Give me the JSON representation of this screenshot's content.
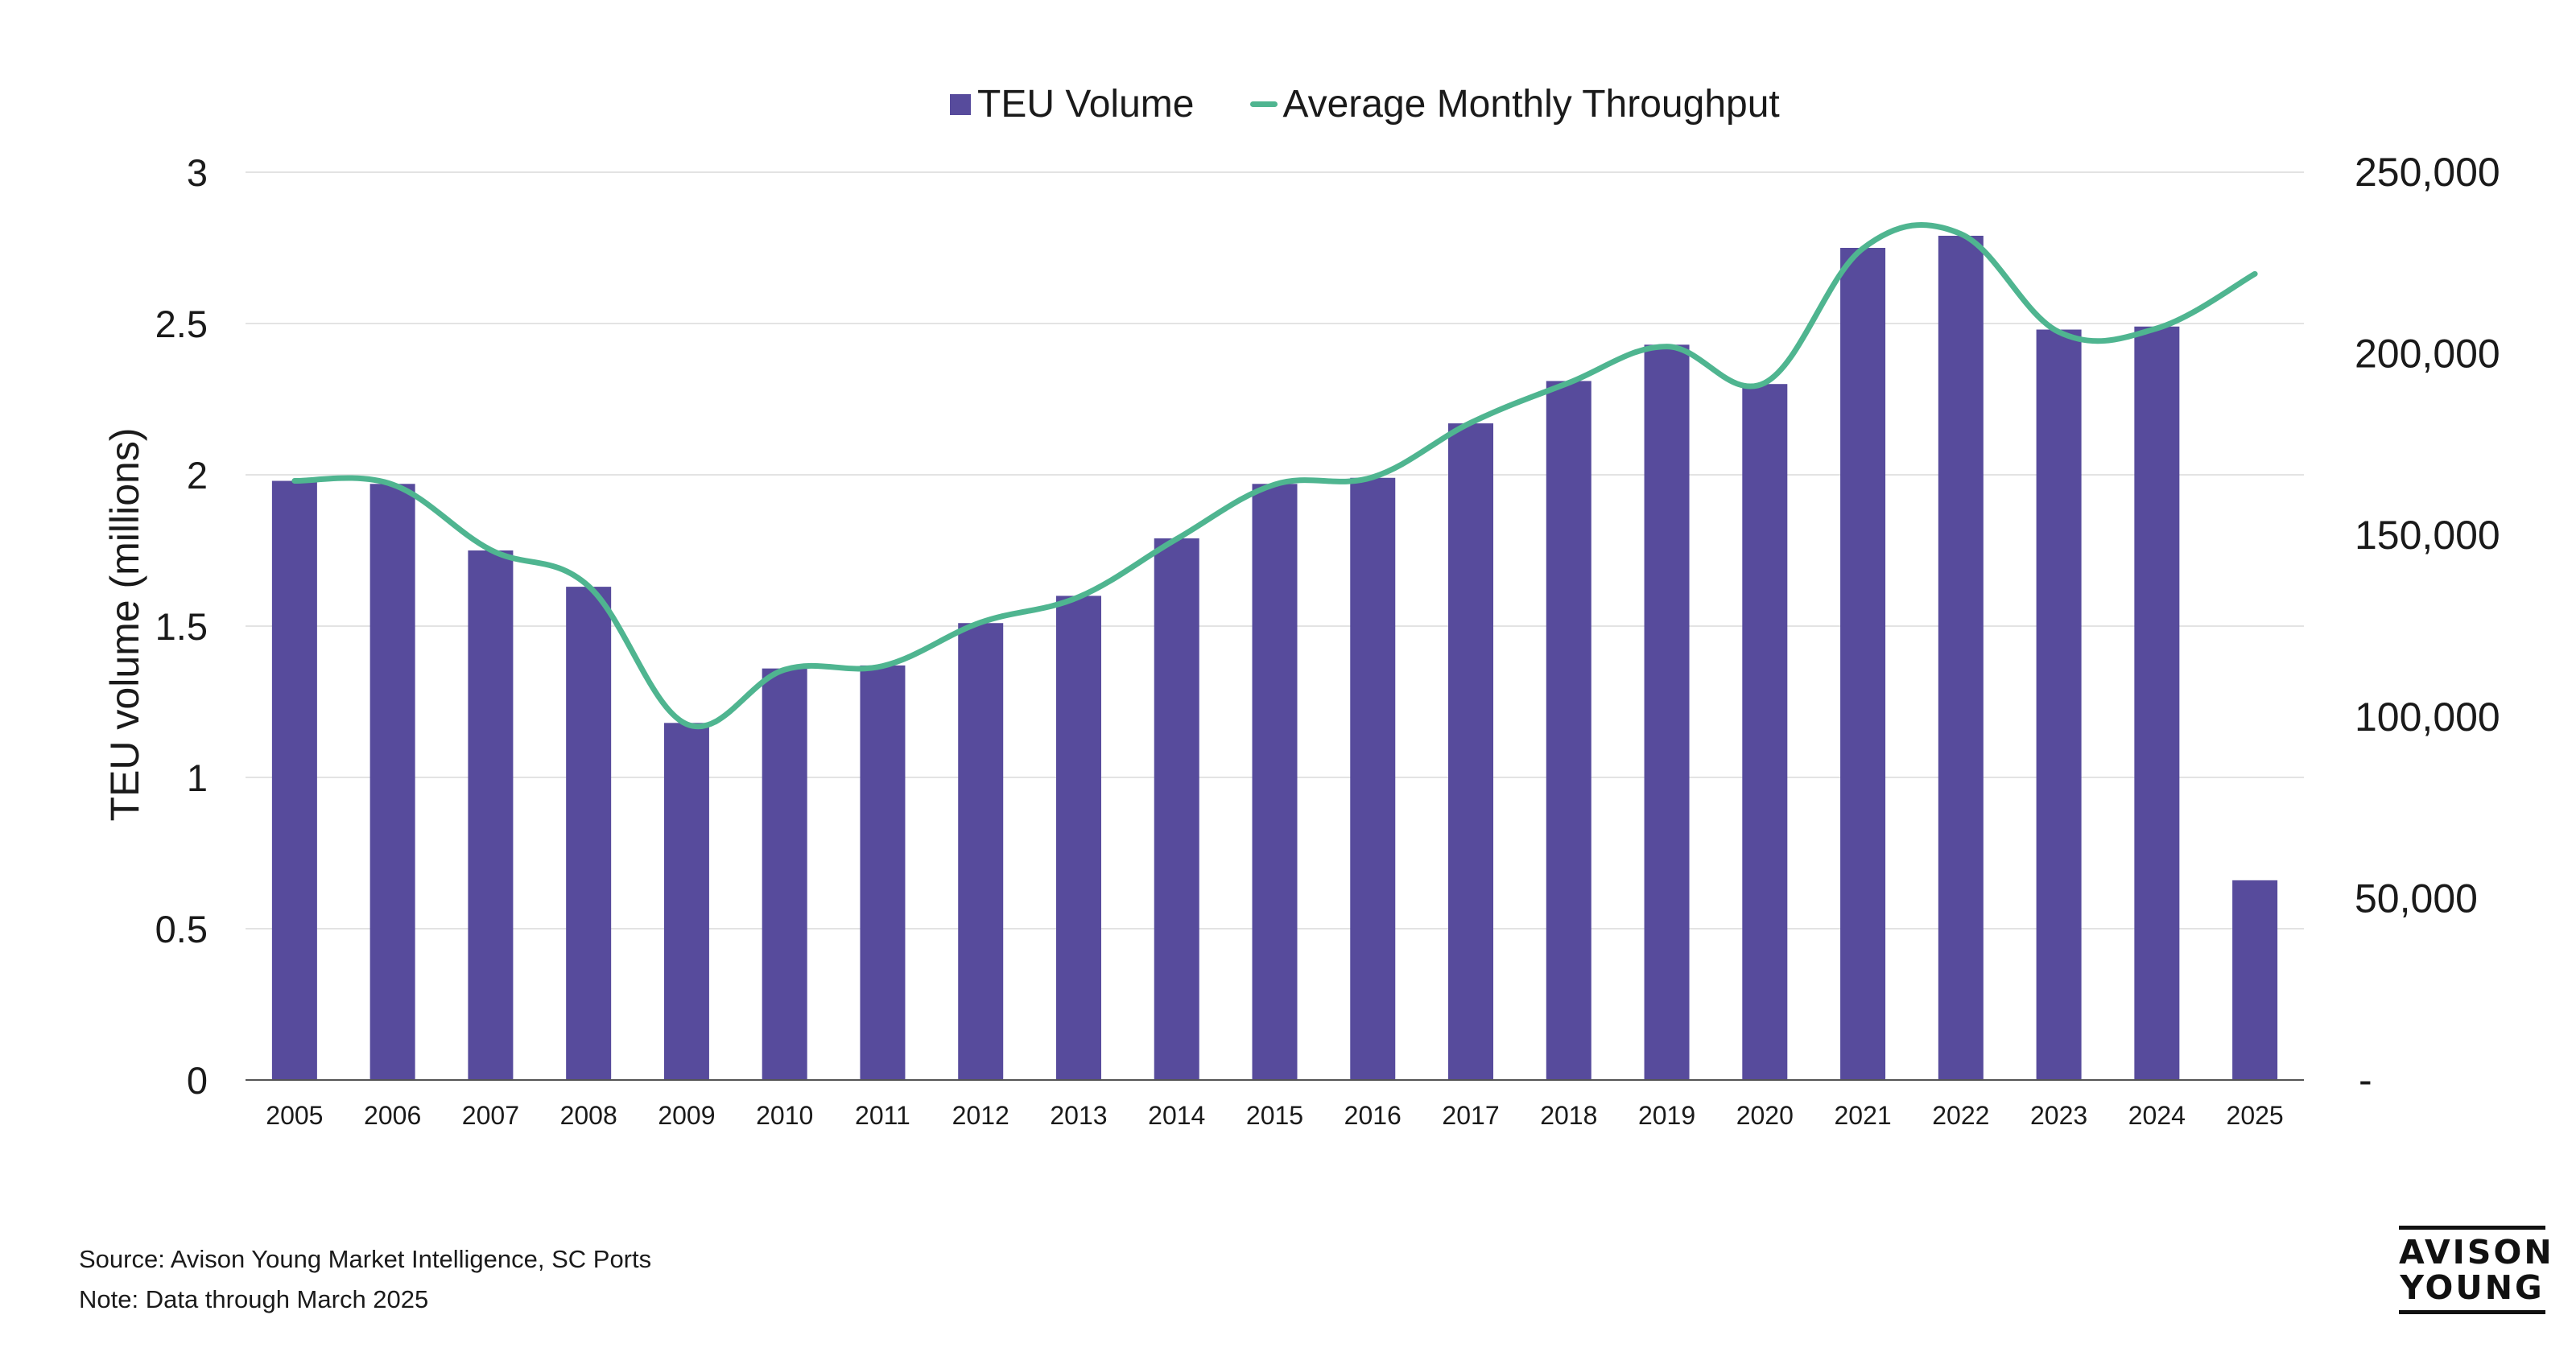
{
  "chart_data": {
    "type": "bar",
    "categories": [
      "2005",
      "2006",
      "2007",
      "2008",
      "2009",
      "2010",
      "2011",
      "2012",
      "2013",
      "2014",
      "2015",
      "2016",
      "2017",
      "2018",
      "2019",
      "2020",
      "2021",
      "2022",
      "2023",
      "2024",
      "2025"
    ],
    "series": [
      {
        "name": "TEU Volume",
        "kind": "bar",
        "axis": "left",
        "color": "#574b9c",
        "values": [
          1.98,
          1.97,
          1.75,
          1.63,
          1.18,
          1.36,
          1.37,
          1.51,
          1.6,
          1.79,
          1.97,
          1.99,
          2.17,
          2.31,
          2.43,
          2.3,
          2.75,
          2.79,
          2.48,
          2.49,
          0.66
        ]
      },
      {
        "name": "Average Monthly Throughput",
        "kind": "line",
        "axis": "right",
        "color": "#4fb590",
        "values": [
          165000,
          164000,
          146000,
          136000,
          98000,
          113000,
          114000,
          126000,
          133000,
          149000,
          164000,
          166000,
          181000,
          192000,
          202000,
          192000,
          229000,
          233000,
          206000,
          207000,
          222000
        ]
      }
    ],
    "title": "",
    "xlabel": "",
    "ylabel": "TEU volume (millions)",
    "y_ticks": [
      "0",
      "0.5",
      "1",
      "1.5",
      "2",
      "2.5",
      "3"
    ],
    "ylim": [
      0,
      3
    ],
    "y2_ticks": [
      "-",
      "50,000",
      "100,000",
      "150,000",
      "200,000",
      "250,000"
    ],
    "y2lim": [
      0,
      250000
    ],
    "grid": true,
    "legend_position": "top-center"
  },
  "legend": {
    "bar_label": "TEU Volume",
    "line_label": "Average Monthly Throughput"
  },
  "footer": {
    "source": "Source: Avison Young Market Intelligence, SC Ports",
    "note": "Note: Data through March 2025"
  },
  "logo": {
    "line1": "AVISON",
    "line2": "YOUNG"
  }
}
